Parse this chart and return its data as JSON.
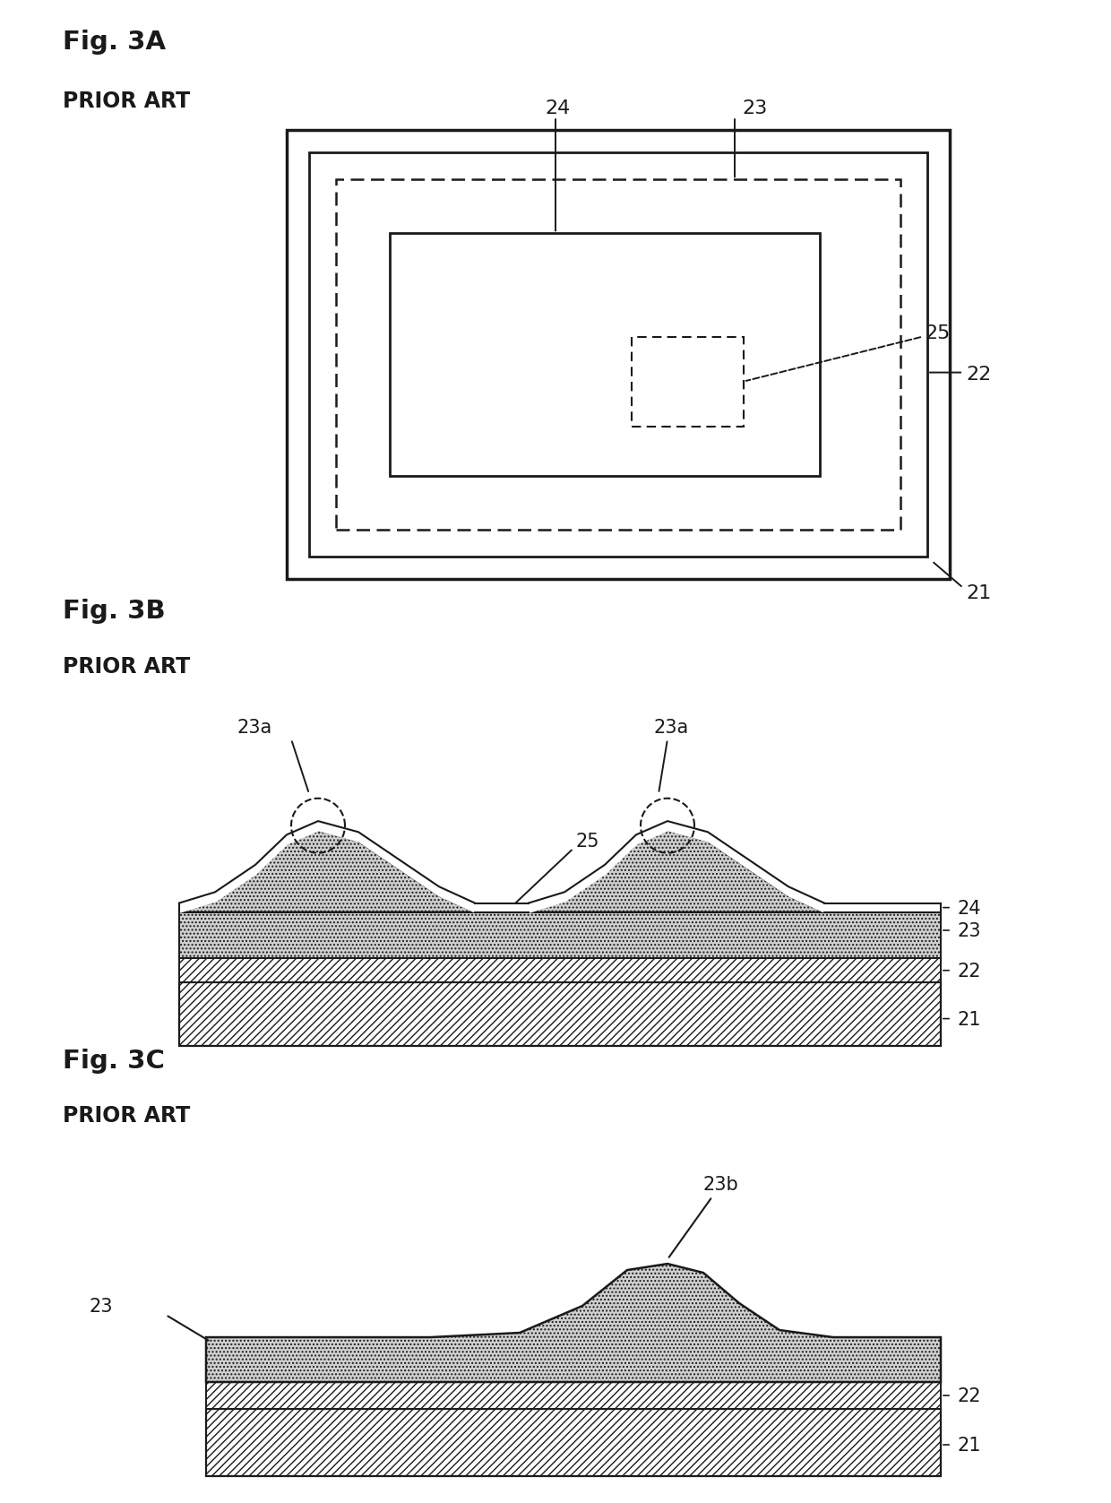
{
  "fig_title_a": "Fig. 3A",
  "fig_title_b": "Fig. 3B",
  "fig_title_c": "Fig. 3C",
  "prior_art": "PRIOR ART",
  "bg_color": "#ffffff",
  "line_color": "#1a1a1a",
  "dot_fill": "#d0d0d0",
  "labels": {
    "21": "21",
    "22": "22",
    "23": "23",
    "23a": "23a",
    "23b": "23b",
    "24": "24",
    "25": "25"
  }
}
